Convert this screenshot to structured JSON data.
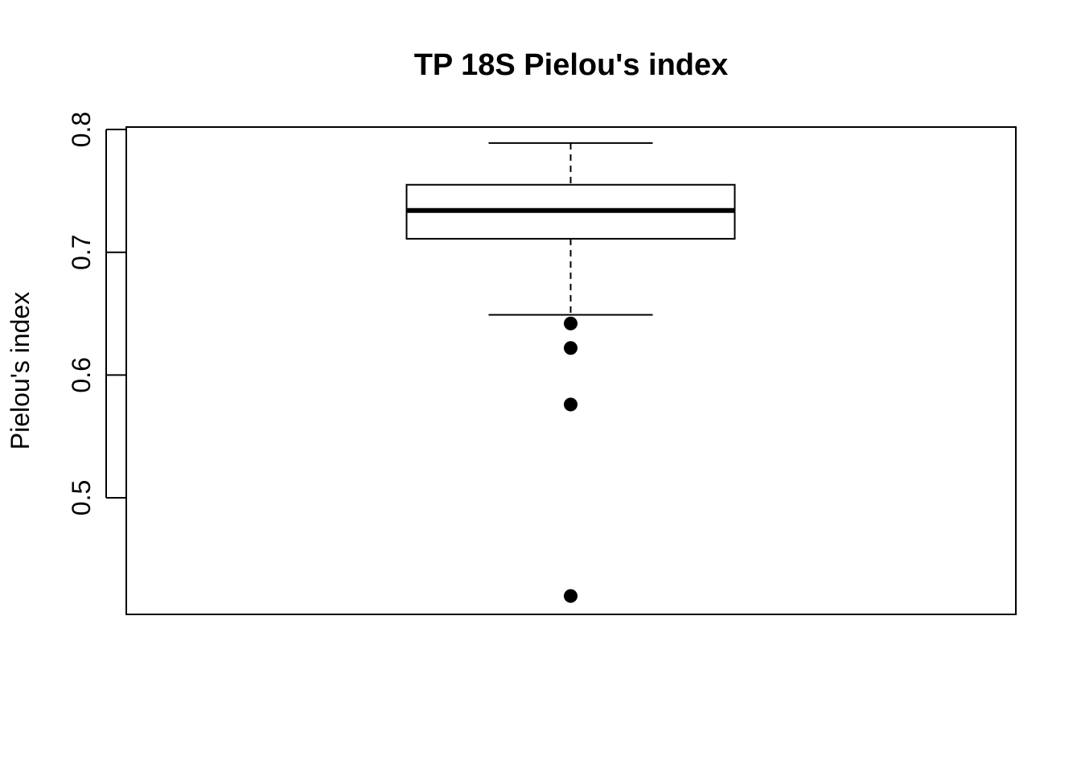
{
  "chart_data": {
    "type": "boxplot",
    "title": "TP 18S Pielou's index",
    "ylabel": "Pielou's index",
    "xlabel": "",
    "ylim": [
      0.405,
      0.802
    ],
    "y_ticks": [
      0.5,
      0.6,
      0.7,
      0.8
    ],
    "y_tick_labels": [
      "0.5",
      "0.6",
      "0.7",
      "0.8"
    ],
    "grid": false,
    "box": {
      "whisker_low": 0.649,
      "q1": 0.711,
      "median": 0.734,
      "q3": 0.755,
      "whisker_high": 0.789
    },
    "outliers": [
      0.642,
      0.622,
      0.576,
      0.42
    ],
    "colors": {
      "line": "#000000",
      "box_fill": "#ffffff",
      "points": "#000000"
    }
  }
}
